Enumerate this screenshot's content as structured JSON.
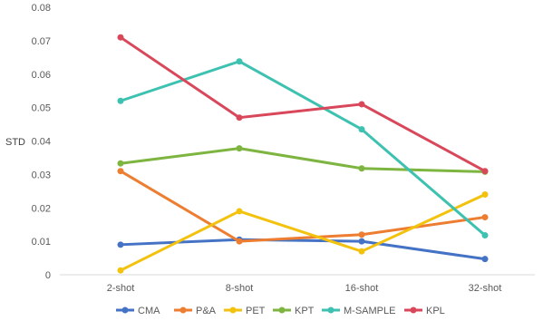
{
  "chart_data": {
    "type": "line",
    "title": "",
    "xlabel": "",
    "ylabel": "STD",
    "categories": [
      "2-shot",
      "8-shot",
      "16-shot",
      "32-shot"
    ],
    "ylim": [
      0,
      0.08
    ],
    "yticks": [
      "0",
      "0.01",
      "0.02",
      "0.03",
      "0.04",
      "0.05",
      "0.06",
      "0.07",
      "0.08"
    ],
    "grid": false,
    "legend_position": "bottom",
    "series": [
      {
        "name": "CMA",
        "color": "#4472C4",
        "values": [
          0.009,
          0.0105,
          0.01,
          0.0047
        ]
      },
      {
        "name": "P&A",
        "color": "#ED7D31",
        "values": [
          0.031,
          0.01,
          0.012,
          0.0172
        ]
      },
      {
        "name": "PET",
        "color": "#F2C20E",
        "values": [
          0.0013,
          0.019,
          0.007,
          0.024
        ]
      },
      {
        "name": "KPT",
        "color": "#7DB540",
        "values": [
          0.0333,
          0.0378,
          0.0318,
          0.0308
        ]
      },
      {
        "name": "M-SAMPLE",
        "color": "#3DC1B1",
        "values": [
          0.052,
          0.0638,
          0.0435,
          0.0118
        ]
      },
      {
        "name": "KPL",
        "color": "#D9475A",
        "values": [
          0.071,
          0.047,
          0.051,
          0.031
        ]
      }
    ]
  }
}
